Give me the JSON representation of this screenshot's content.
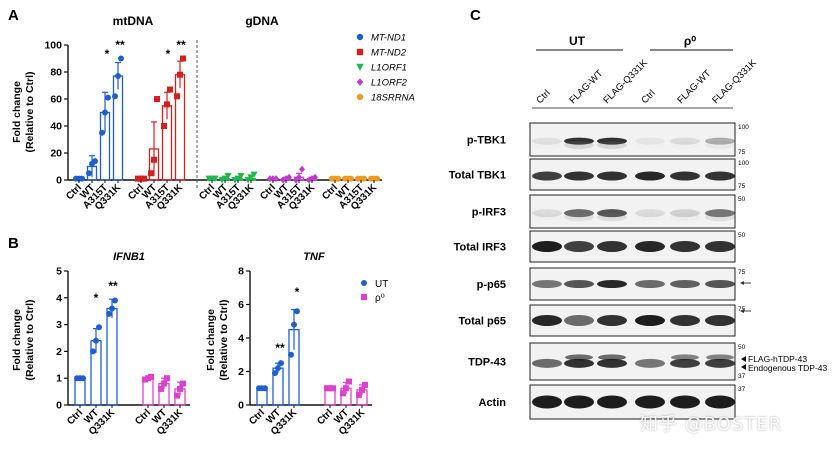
{
  "panels": {
    "A": "A",
    "B": "B",
    "C": "C"
  },
  "panelA": {
    "subtitle_left": "mtDNA",
    "subtitle_right": "gDNA",
    "ylabel_line1": "Fold change",
    "ylabel_line2": "(Relative to Ctrl)",
    "yticks": [
      "0",
      "20",
      "40",
      "60",
      "80",
      "100"
    ],
    "significance": [
      "*",
      "**",
      "*",
      "**"
    ],
    "legend": [
      {
        "name": "MT-ND1",
        "color": "#1f5fd0",
        "marker": "circle"
      },
      {
        "name": "MT-ND2",
        "color": "#d62020",
        "marker": "square"
      },
      {
        "name": "L1ORF1",
        "color": "#1fb84a",
        "marker": "triangle-down"
      },
      {
        "name": "L1ORF2",
        "color": "#c03bd0",
        "marker": "diamond"
      },
      {
        "name": "18SRRNA",
        "color": "#f09a20",
        "marker": "circle"
      }
    ],
    "xtick_groups": [
      [
        "Ctrl",
        "WT",
        "A315T",
        "Q331K"
      ],
      [
        "Ctrl",
        "WT",
        "A315T",
        "Q331K"
      ],
      [
        "Ctrl",
        "WT",
        "A315T",
        "Q331K"
      ],
      [
        "Ctrl",
        "WT",
        "A315T",
        "Q331K"
      ],
      [
        "Ctrl",
        "WT",
        "A315T",
        "Q331K"
      ]
    ]
  },
  "panelB": {
    "titles": [
      "IFNB1",
      "TNF"
    ],
    "ylabel_line1": "Fold change",
    "ylabel_line2": "(Relative to Ctrl)",
    "yticks_left": [
      "0",
      "1",
      "2",
      "3",
      "4",
      "5"
    ],
    "yticks_right": [
      "0",
      "2",
      "4",
      "6",
      "8"
    ],
    "legend": [
      {
        "name": "UT",
        "color": "#1f5fd0"
      },
      {
        "name": "ρ⁰",
        "color": "#e040d0"
      }
    ],
    "sig_left": [
      "*",
      "**"
    ],
    "sig_right": [
      "**",
      "*"
    ],
    "xticks": [
      "Ctrl",
      "WT",
      "Q331K"
    ]
  },
  "panelC": {
    "group_labels": [
      "UT",
      "ρ⁰"
    ],
    "lane_labels": [
      "Ctrl",
      "FLAG-WT",
      "FLAG-Q331K",
      "Ctrl",
      "FLAG-WT",
      "FLAG-Q331K"
    ],
    "rows": [
      {
        "label": "p-TBK1",
        "mw": [
          "100",
          "75"
        ]
      },
      {
        "label": "Total TBK1",
        "mw": [
          "100",
          "75"
        ]
      },
      {
        "label": "p-IRF3",
        "mw": [
          "50"
        ]
      },
      {
        "label": "Total IRF3",
        "mw": [
          "50"
        ]
      },
      {
        "label": "p-p65",
        "mw": [
          "75"
        ]
      },
      {
        "label": "Total p65",
        "mw": [
          "75"
        ]
      },
      {
        "label": "TDP-43",
        "mw": [
          "50",
          "37"
        ]
      },
      {
        "label": "Actin",
        "mw": [
          "37"
        ]
      }
    ],
    "tdp_annotations": [
      "FLAG-hTDP-43",
      "Endogenous TDP-43"
    ],
    "watermark": "知乎 @BOSTER"
  },
  "chart_data": [
    {
      "type": "bar",
      "panel": "A",
      "title": "mtDNA / gDNA",
      "ylabel": "Fold change (Relative to Ctrl)",
      "ylim": [
        0,
        100
      ],
      "categories": [
        "Ctrl",
        "WT",
        "A315T",
        "Q331K"
      ],
      "series": [
        {
          "name": "MT-ND1",
          "values": [
            1,
            10,
            50,
            77
          ],
          "errors": [
            0.5,
            8,
            15,
            10
          ],
          "points": [
            [
              1,
              1,
              1
            ],
            [
              5,
              12,
              14
            ],
            [
              35,
              50,
              61
            ],
            [
              62,
              77,
              90
            ]
          ]
        },
        {
          "name": "MT-ND2",
          "values": [
            1,
            23,
            55,
            78
          ],
          "errors": [
            0.5,
            20,
            10,
            10
          ],
          "points": [
            [
              1,
              1,
              1
            ],
            [
              5,
              15,
              60
            ],
            [
              40,
              56,
              67
            ],
            [
              62,
              78,
              90
            ]
          ]
        },
        {
          "name": "L1ORF1",
          "values": [
            1,
            1,
            1,
            1
          ],
          "errors": [
            0.3,
            1,
            1,
            2
          ],
          "points": [
            [
              1,
              1,
              1
            ],
            [
              0,
              1,
              3
            ],
            [
              0,
              1,
              3
            ],
            [
              0,
              2,
              4
            ]
          ]
        },
        {
          "name": "L1ORF2",
          "values": [
            1,
            1,
            2,
            1
          ],
          "errors": [
            0.3,
            1,
            3,
            1
          ],
          "points": [
            [
              1,
              1,
              1
            ],
            [
              0,
              1,
              2
            ],
            [
              0,
              2,
              8
            ],
            [
              0,
              1,
              2
            ]
          ]
        },
        {
          "name": "18SRRNA",
          "values": [
            1,
            1,
            1,
            1
          ],
          "errors": [
            0.2,
            0.5,
            0.5,
            0.5
          ],
          "points": [
            [
              1,
              1,
              1
            ],
            [
              1,
              1,
              1
            ],
            [
              1,
              1,
              1
            ],
            [
              1,
              1,
              1
            ]
          ]
        }
      ]
    },
    {
      "type": "bar",
      "panel": "B",
      "title": "IFNB1",
      "ylabel": "Fold change (Relative to Ctrl)",
      "ylim": [
        0,
        5
      ],
      "categories": [
        "Ctrl",
        "WT",
        "Q331K"
      ],
      "series": [
        {
          "name": "UT",
          "values": [
            1,
            2.4,
            3.6
          ],
          "errors": [
            0.03,
            0.45,
            0.35
          ],
          "points": [
            [
              1,
              1,
              1
            ],
            [
              2.0,
              2.4,
              2.9
            ],
            [
              3.4,
              3.6,
              3.9
            ]
          ]
        },
        {
          "name": "ρ⁰",
          "values": [
            1,
            0.8,
            0.6
          ],
          "errors": [
            0.05,
            0.2,
            0.25
          ],
          "points": [
            [
              0.95,
              1,
              1.05
            ],
            [
              0.6,
              0.8,
              1.0
            ],
            [
              0.35,
              0.6,
              0.8
            ]
          ]
        }
      ]
    },
    {
      "type": "bar",
      "panel": "B",
      "title": "TNF",
      "ylabel": "Fold change (Relative to Ctrl)",
      "ylim": [
        0,
        8
      ],
      "categories": [
        "Ctrl",
        "WT",
        "Q331K"
      ],
      "series": [
        {
          "name": "UT",
          "values": [
            1,
            2.2,
            4.5
          ],
          "errors": [
            0.05,
            0.3,
            1.2
          ],
          "points": [
            [
              1,
              1,
              1
            ],
            [
              1.9,
              2.2,
              2.5
            ],
            [
              3.0,
              4.8,
              5.6
            ]
          ]
        },
        {
          "name": "ρ⁰",
          "values": [
            1,
            1.0,
            0.9
          ],
          "errors": [
            0.05,
            0.35,
            0.3
          ],
          "points": [
            [
              1,
              1,
              1
            ],
            [
              0.7,
              1.0,
              1.4
            ],
            [
              0.6,
              0.9,
              1.2
            ]
          ]
        }
      ]
    }
  ]
}
